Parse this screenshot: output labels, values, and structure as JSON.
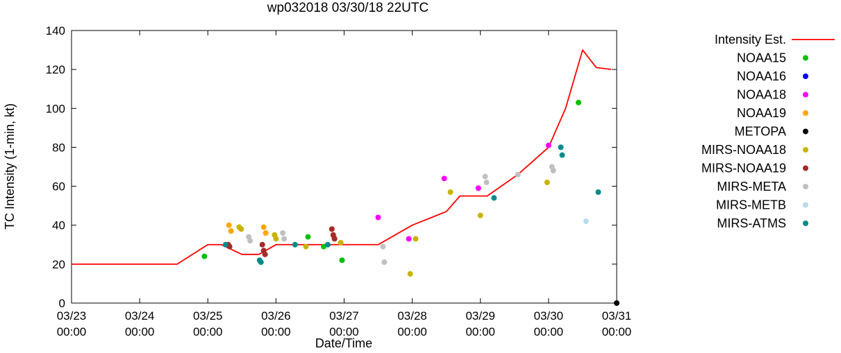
{
  "chart_data": {
    "type": "line+scatter",
    "title": "wp032018 03/30/18 22UTC",
    "xlabel": "Date/Time",
    "ylabel": "TC Intensity (1-min, kt)",
    "xlim": [
      0,
      8
    ],
    "ylim": [
      0,
      140
    ],
    "x_axis_note": "x values are days since 03/23 00:00 UTC",
    "grid": false,
    "legend_position": "right",
    "y_ticks": [
      0,
      20,
      40,
      60,
      80,
      100,
      120,
      140
    ],
    "x_ticks": [
      {
        "day": 0,
        "date": "03/23",
        "time": "00:00"
      },
      {
        "day": 1,
        "date": "03/24",
        "time": "00:00"
      },
      {
        "day": 2,
        "date": "03/25",
        "time": "00:00"
      },
      {
        "day": 3,
        "date": "03/26",
        "time": "00:00"
      },
      {
        "day": 4,
        "date": "03/27",
        "time": "00:00"
      },
      {
        "day": 5,
        "date": "03/28",
        "time": "00:00"
      },
      {
        "day": 6,
        "date": "03/29",
        "time": "00:00"
      },
      {
        "day": 7,
        "date": "03/30",
        "time": "00:00"
      },
      {
        "day": 8,
        "date": "03/31",
        "time": "00:00"
      }
    ],
    "intensity_line": {
      "name": "Intensity Est.",
      "color": "#ff0000",
      "points": [
        [
          0,
          20
        ],
        [
          1.55,
          20
        ],
        [
          2.0,
          30
        ],
        [
          2.2,
          30
        ],
        [
          2.5,
          25
        ],
        [
          2.75,
          25
        ],
        [
          3.0,
          30
        ],
        [
          4.5,
          30
        ],
        [
          5.0,
          40
        ],
        [
          5.5,
          47
        ],
        [
          5.7,
          55
        ],
        [
          6.1,
          55
        ],
        [
          6.55,
          66
        ],
        [
          7.0,
          80
        ],
        [
          7.25,
          100
        ],
        [
          7.5,
          130
        ],
        [
          7.7,
          121
        ],
        [
          7.92,
          120
        ]
      ]
    },
    "series": [
      {
        "name": "NOAA15",
        "color": "#00c000",
        "points": [
          [
            1.95,
            24
          ],
          [
            3.47,
            34
          ],
          [
            3.7,
            29
          ],
          [
            3.97,
            22
          ],
          [
            7.44,
            103
          ]
        ]
      },
      {
        "name": "NOAA16",
        "color": "#0000ff",
        "points": []
      },
      {
        "name": "NOAA18",
        "color": "#ff00ff",
        "points": [
          [
            4.5,
            44
          ],
          [
            4.95,
            33
          ],
          [
            5.47,
            64
          ],
          [
            5.97,
            59
          ],
          [
            7.0,
            81
          ]
        ]
      },
      {
        "name": "NOAA19",
        "color": "#ffa500",
        "points": [
          [
            2.31,
            40
          ],
          [
            2.34,
            37
          ],
          [
            2.82,
            39
          ],
          [
            2.85,
            36
          ],
          [
            3.82,
            38
          ],
          [
            3.85,
            34
          ]
        ]
      },
      {
        "name": "METOPA",
        "color": "#000000",
        "points": [
          [
            8,
            0
          ]
        ]
      },
      {
        "name": "MIRS-NOAA18",
        "color": "#c8b400",
        "points": [
          [
            2.46,
            39
          ],
          [
            2.49,
            38
          ],
          [
            2.98,
            35
          ],
          [
            3.0,
            33
          ],
          [
            3.44,
            29
          ],
          [
            3.95,
            31
          ],
          [
            4.97,
            15
          ],
          [
            5.05,
            33
          ],
          [
            5.56,
            57
          ],
          [
            6.0,
            45
          ],
          [
            6.98,
            62
          ]
        ]
      },
      {
        "name": "MIRS-NOAA19",
        "color": "#a52a2a",
        "points": [
          [
            2.3,
            30
          ],
          [
            2.32,
            29
          ],
          [
            2.8,
            30
          ],
          [
            2.82,
            27
          ],
          [
            2.84,
            25
          ],
          [
            3.82,
            38
          ],
          [
            3.84,
            35
          ],
          [
            3.86,
            33
          ]
        ]
      },
      {
        "name": "MIRS-META",
        "color": "#c0c0c0",
        "points": [
          [
            2.6,
            34
          ],
          [
            2.62,
            32
          ],
          [
            3.1,
            36
          ],
          [
            3.12,
            33
          ],
          [
            4.57,
            29
          ],
          [
            4.59,
            21
          ],
          [
            6.07,
            65
          ],
          [
            6.09,
            62
          ],
          [
            6.55,
            66
          ],
          [
            7.05,
            70
          ],
          [
            7.07,
            68
          ]
        ]
      },
      {
        "name": "MIRS-METB",
        "color": "#b7dcea",
        "points": [
          [
            7.55,
            42
          ]
        ]
      },
      {
        "name": "MIRS-ATMS",
        "color": "#008b8b",
        "points": [
          [
            2.26,
            30
          ],
          [
            2.76,
            22
          ],
          [
            2.78,
            21
          ],
          [
            3.28,
            30
          ],
          [
            3.76,
            30
          ],
          [
            6.2,
            54
          ],
          [
            7.18,
            80
          ],
          [
            7.2,
            76
          ],
          [
            7.73,
            57
          ]
        ]
      }
    ]
  }
}
